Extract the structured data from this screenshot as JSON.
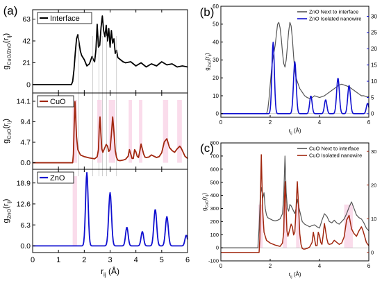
{
  "figure": {
    "panel_labels": {
      "a": "(a)",
      "b": "(b)",
      "c": "(c)"
    }
  },
  "colors": {
    "interface": "#000000",
    "cuo": "#a1270f",
    "zno": "#1010d0",
    "b_next": "#555555",
    "b_iso": "#1010d0",
    "c_next": "#555555",
    "c_iso": "#a1270f",
    "b_right_axis": "#1010d0",
    "c_right_axis": "#a1270f",
    "shade": "#f8d0e4"
  },
  "chart_data": [
    {
      "id": "a1",
      "type": "line",
      "legend": "Interface",
      "ylabel_main": "g",
      "ylabel_sub": "CuO/ZnO",
      "ylabel_tail": "(r",
      "ylabel_tail_sub": "ij",
      "ylabel_close": ")",
      "xlim": [
        0,
        6
      ],
      "ylim": [
        -8,
        72
      ],
      "yticks": [
        "0",
        "21",
        "42",
        "63"
      ],
      "ytick_values": [
        0,
        21,
        42,
        63
      ],
      "series": [
        {
          "name": "Interface",
          "x": [
            0,
            1.5,
            1.55,
            1.6,
            1.65,
            1.7,
            1.75,
            1.8,
            1.85,
            1.9,
            1.95,
            2.0,
            2.1,
            2.2,
            2.3,
            2.35,
            2.4,
            2.45,
            2.5,
            2.55,
            2.6,
            2.65,
            2.7,
            2.75,
            2.8,
            2.85,
            2.9,
            2.95,
            3.0,
            3.05,
            3.1,
            3.15,
            3.2,
            3.25,
            3.3,
            3.4,
            3.5,
            3.6,
            3.8,
            4.0,
            4.2,
            4.4,
            4.6,
            4.8,
            5.0,
            5.2,
            5.4,
            5.6,
            5.8,
            6.0
          ],
          "y": [
            0,
            0,
            3,
            14,
            30,
            44,
            48,
            40,
            32,
            28,
            26,
            24,
            18,
            20,
            27,
            24,
            22,
            33,
            58,
            36,
            38,
            55,
            66,
            52,
            46,
            57,
            42,
            54,
            36,
            52,
            40,
            44,
            30,
            33,
            26,
            24,
            22,
            21,
            22,
            18,
            21,
            17,
            20,
            18,
            22,
            19,
            20,
            17,
            18,
            17
          ]
        }
      ]
    },
    {
      "id": "a2",
      "type": "line",
      "legend": "CuO",
      "ylabel_main": "g",
      "ylabel_sub": "CuO",
      "ylabel_tail": "(r",
      "ylabel_tail_sub": "ij",
      "ylabel_close": ")",
      "xlim": [
        0,
        6
      ],
      "ylim": [
        -1.5,
        16
      ],
      "yticks": [
        "0.0",
        "4.7",
        "9.4",
        "14.1"
      ],
      "ytick_values": [
        0,
        4.7,
        9.4,
        14.1
      ],
      "series": [
        {
          "name": "CuO",
          "x": [
            0,
            1.55,
            1.58,
            1.61,
            1.64,
            1.67,
            1.7,
            1.75,
            1.85,
            2.0,
            2.2,
            2.4,
            2.5,
            2.55,
            2.58,
            2.61,
            2.64,
            2.68,
            2.72,
            2.8,
            2.85,
            2.9,
            2.95,
            3.0,
            3.05,
            3.1,
            3.15,
            3.2,
            3.25,
            3.3,
            3.35,
            3.4,
            3.5,
            3.6,
            3.7,
            3.75,
            3.8,
            3.85,
            3.9,
            3.95,
            4.0,
            4.05,
            4.1,
            4.15,
            4.2,
            4.3,
            4.35,
            4.4,
            4.5,
            4.6,
            4.7,
            4.8,
            4.9,
            5.0,
            5.1,
            5.2,
            5.25,
            5.3,
            5.4,
            5.5,
            5.6,
            5.7,
            5.75,
            5.8,
            5.9,
            6.0
          ],
          "y": [
            0,
            0,
            2,
            9,
            14,
            10,
            6,
            3,
            1.8,
            1.4,
            1.1,
            0.9,
            1.4,
            3,
            8,
            10.5,
            7,
            3.2,
            2.4,
            3.5,
            4.2,
            3.8,
            2.6,
            3.0,
            6.5,
            10.5,
            7.0,
            2.8,
            1.2,
            0.6,
            0.5,
            0.5,
            0.6,
            0.8,
            1.5,
            3.0,
            2.0,
            1.0,
            1.0,
            3.0,
            2.5,
            1.5,
            1.2,
            2.6,
            4.3,
            2.0,
            1.3,
            1.2,
            1.3,
            1.8,
            1.5,
            1.2,
            1.4,
            2.3,
            4.8,
            5.5,
            4.5,
            3.5,
            2.8,
            2.4,
            3.2,
            3.8,
            3.4,
            2.8,
            1.5,
            1.0
          ]
        }
      ]
    },
    {
      "id": "a3",
      "type": "line",
      "legend": "ZnO",
      "ylabel_main": "g",
      "ylabel_sub": "ZnO",
      "ylabel_tail": "(r",
      "ylabel_tail_sub": "ij",
      "ylabel_close": ")",
      "xlabel_main": "r",
      "xlabel_sub": "ij",
      "xlabel_unit": " (Å)",
      "xlim": [
        0,
        6
      ],
      "ylim": [
        -2,
        23
      ],
      "xticks": [
        "0",
        "1",
        "2",
        "3",
        "4",
        "5",
        "6"
      ],
      "xtick_values": [
        0,
        1,
        2,
        3,
        4,
        5,
        6
      ],
      "yticks": [
        "0.0",
        "6.3",
        "12.6",
        "18.9"
      ],
      "ytick_values": [
        0,
        6.3,
        12.6,
        18.9
      ],
      "series": [
        {
          "name": "ZnO",
          "peaks": [
            [
              2.1,
              22,
              0.05
            ],
            [
              3.0,
              16,
              0.055
            ],
            [
              3.65,
              5.6,
              0.05
            ],
            [
              4.25,
              4.3,
              0.05
            ],
            [
              4.75,
              11,
              0.055
            ],
            [
              5.2,
              8.8,
              0.055
            ],
            [
              5.95,
              3.2,
              0.05
            ]
          ]
        }
      ]
    },
    {
      "id": "b",
      "type": "line",
      "ylabel_main": "g",
      "ylabel_sub": "ZnO",
      "ylabel_tail": "(r",
      "ylabel_tail_sub": "ij",
      "ylabel_close": ")",
      "xlabel_main": "r",
      "xlabel_sub": "ij",
      "xlabel_unit": " (Å)",
      "xlim": [
        0,
        6
      ],
      "ylim": [
        -2,
        60
      ],
      "ylim_right": [
        -1.1,
        33.1
      ],
      "xticks": [
        "0",
        "2",
        "4",
        "6"
      ],
      "xtick_values": [
        0,
        2,
        4,
        6
      ],
      "yticks": [
        "0",
        "10",
        "20",
        "30",
        "40",
        "50",
        "60"
      ],
      "ytick_values": [
        0,
        10,
        20,
        30,
        40,
        50,
        60
      ],
      "yticks_right": [
        "0",
        "5",
        "10",
        "15",
        "20",
        "25",
        "30"
      ],
      "ytick_values_right": [
        0,
        5,
        10,
        15,
        20,
        25,
        30
      ],
      "legend": [
        "ZnO Next to interface",
        "ZnO Isolated nanowire"
      ],
      "series": [
        {
          "name": "ZnO Next to interface",
          "axis": "left",
          "x": [
            0,
            1.85,
            1.9,
            1.95,
            2.0,
            2.05,
            2.1,
            2.15,
            2.2,
            2.25,
            2.3,
            2.35,
            2.4,
            2.45,
            2.5,
            2.55,
            2.6,
            2.65,
            2.7,
            2.75,
            2.8,
            2.85,
            2.9,
            2.95,
            3.0,
            3.05,
            3.1,
            3.15,
            3.2,
            3.3,
            3.4,
            3.5,
            3.6,
            3.7,
            3.8,
            3.9,
            4.0,
            4.1,
            4.2,
            4.3,
            4.4,
            4.5,
            4.6,
            4.7,
            4.8,
            4.9,
            5.0,
            5.1,
            5.2,
            5.3,
            5.4,
            5.5,
            5.6,
            5.7,
            5.8,
            5.9,
            6.0
          ],
          "y": [
            0,
            0,
            2,
            8,
            16,
            24,
            30,
            34,
            38,
            44,
            50,
            51,
            48,
            42,
            34,
            28,
            26,
            30,
            38,
            46,
            51,
            49,
            42,
            32,
            24,
            20,
            18,
            16,
            14,
            12,
            10,
            9,
            8.5,
            9,
            10,
            9.5,
            9,
            9.5,
            10,
            11,
            12,
            13,
            14,
            15,
            16,
            16.5,
            16,
            15.5,
            15,
            14,
            13,
            12,
            11,
            10,
            10,
            9.5,
            9.5
          ]
        },
        {
          "name": "ZnO Isolated nanowire",
          "axis": "right",
          "peaks": [
            [
              2.12,
              22,
              0.05
            ],
            [
              3.0,
              16,
              0.055
            ],
            [
              3.65,
              5.5,
              0.05
            ],
            [
              4.25,
              4.3,
              0.05
            ],
            [
              4.75,
              11,
              0.055
            ],
            [
              5.2,
              8.7,
              0.055
            ],
            [
              5.95,
              3.2,
              0.05
            ]
          ]
        }
      ]
    },
    {
      "id": "c",
      "type": "line",
      "ylabel_main": "g",
      "ylabel_sub": "CuO",
      "ylabel_tail": "(r",
      "ylabel_tail_sub": "ij",
      "ylabel_close": ")",
      "xlabel_main": "r",
      "xlabel_sub": "ij",
      "xlabel_unit": " (Å)",
      "xlim": [
        0,
        6
      ],
      "ylim": [
        -100,
        800
      ],
      "ylim_right": [
        -2.5,
        32.5
      ],
      "xticks": [
        "0",
        "2",
        "4",
        "6"
      ],
      "xtick_values": [
        0,
        2,
        4,
        6
      ],
      "yticks": [
        "-100",
        "0",
        "100",
        "200",
        "300",
        "400",
        "500",
        "600",
        "700",
        "800"
      ],
      "ytick_values": [
        -100,
        0,
        100,
        200,
        300,
        400,
        500,
        600,
        700,
        800
      ],
      "yticks_right": [
        "0",
        "10",
        "20",
        "30"
      ],
      "ytick_values_right": [
        0,
        10,
        20,
        30
      ],
      "legend": [
        "CuO Next to interface",
        "CuO Isolated nanowire"
      ],
      "series": [
        {
          "name": "CuO Next to interface",
          "axis": "left",
          "x": [
            0,
            1.5,
            1.55,
            1.6,
            1.65,
            1.7,
            1.75,
            1.8,
            1.85,
            1.9,
            2.0,
            2.1,
            2.2,
            2.3,
            2.4,
            2.5,
            2.55,
            2.6,
            2.65,
            2.7,
            2.75,
            2.8,
            2.85,
            2.9,
            2.95,
            3.0,
            3.05,
            3.1,
            3.15,
            3.2,
            3.25,
            3.3,
            3.4,
            3.5,
            3.6,
            3.7,
            3.8,
            3.9,
            4.0,
            4.1,
            4.2,
            4.3,
            4.4,
            4.5,
            4.6,
            4.7,
            4.8,
            4.9,
            5.0,
            5.1,
            5.2,
            5.3,
            5.4,
            5.5,
            5.6,
            5.7,
            5.8,
            5.9,
            6.0
          ],
          "y": [
            0,
            0,
            150,
            400,
            460,
            380,
            420,
            300,
            250,
            230,
            220,
            210,
            205,
            210,
            220,
            260,
            400,
            700,
            420,
            300,
            280,
            330,
            320,
            300,
            280,
            260,
            300,
            370,
            320,
            280,
            240,
            200,
            180,
            170,
            160,
            170,
            175,
            160,
            150,
            210,
            260,
            240,
            200,
            190,
            210,
            190,
            180,
            200,
            220,
            260,
            310,
            350,
            300,
            250,
            230,
            220,
            190,
            150,
            130
          ]
        },
        {
          "name": "CuO Isolated nanowire",
          "axis": "right",
          "x": [
            0,
            1.55,
            1.58,
            1.61,
            1.64,
            1.67,
            1.7,
            1.75,
            1.85,
            2.0,
            2.2,
            2.4,
            2.5,
            2.55,
            2.58,
            2.61,
            2.64,
            2.68,
            2.72,
            2.8,
            2.85,
            2.9,
            2.95,
            3.0,
            3.05,
            3.1,
            3.15,
            3.2,
            3.25,
            3.3,
            3.35,
            3.4,
            3.5,
            3.6,
            3.7,
            3.75,
            3.8,
            3.85,
            3.9,
            3.95,
            4.0,
            4.05,
            4.1,
            4.15,
            4.2,
            4.3,
            4.35,
            4.4,
            4.5,
            4.6,
            4.7,
            4.8,
            4.9,
            5.0,
            5.1,
            5.2,
            5.25,
            5.3,
            5.4,
            5.5,
            5.6,
            5.7,
            5.75,
            5.8,
            5.9,
            6.0
          ],
          "y": [
            0,
            0,
            4,
            18,
            29,
            20,
            12,
            6,
            3.6,
            2.8,
            2.2,
            1.8,
            2.8,
            6,
            16,
            21,
            14,
            6.4,
            4.8,
            7,
            8.4,
            7.6,
            5.2,
            6,
            13,
            21,
            14,
            5.6,
            2.4,
            1.2,
            1,
            1,
            1.2,
            1.6,
            3,
            6,
            4,
            2,
            2,
            6,
            5,
            3,
            2.4,
            5.2,
            8.6,
            4,
            2.6,
            2.4,
            2.6,
            3.6,
            3,
            2.4,
            2.8,
            4.6,
            9.6,
            11,
            9,
            7,
            5.6,
            4.8,
            6.4,
            7.6,
            6.8,
            5.6,
            3,
            2
          ]
        }
      ]
    }
  ]
}
